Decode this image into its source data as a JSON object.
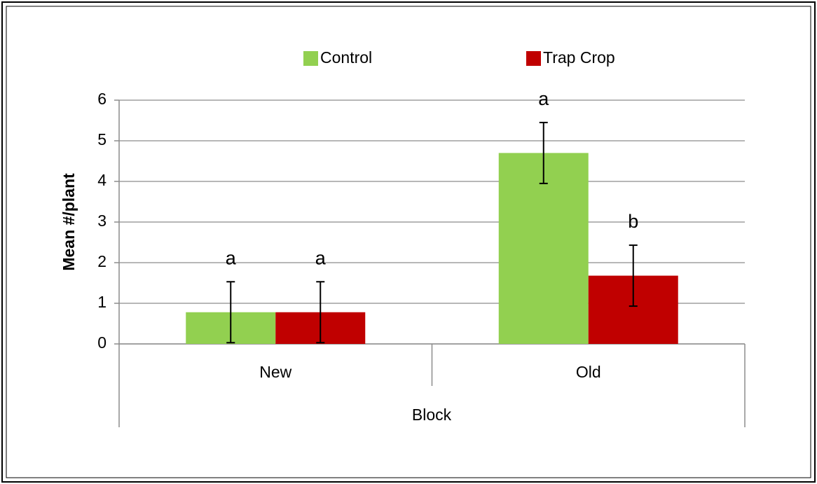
{
  "chart_data": {
    "type": "bar",
    "y_label": "Mean #/plant",
    "x_label": "Block",
    "categories": [
      "New",
      "Old"
    ],
    "series": [
      {
        "name": "Control",
        "color": "#92d050",
        "values": [
          0.78,
          4.7
        ],
        "errors": [
          0.75,
          0.75
        ],
        "letters": [
          "a",
          "a"
        ]
      },
      {
        "name": "Trap Crop",
        "color": "#c00000",
        "values": [
          0.78,
          1.68
        ],
        "errors": [
          0.75,
          0.75
        ],
        "letters": [
          "a",
          "b"
        ]
      }
    ],
    "ylim": [
      0,
      6
    ],
    "yticks": [
      0,
      1,
      2,
      3,
      4,
      5,
      6
    ],
    "grid": true,
    "legend": "top"
  }
}
